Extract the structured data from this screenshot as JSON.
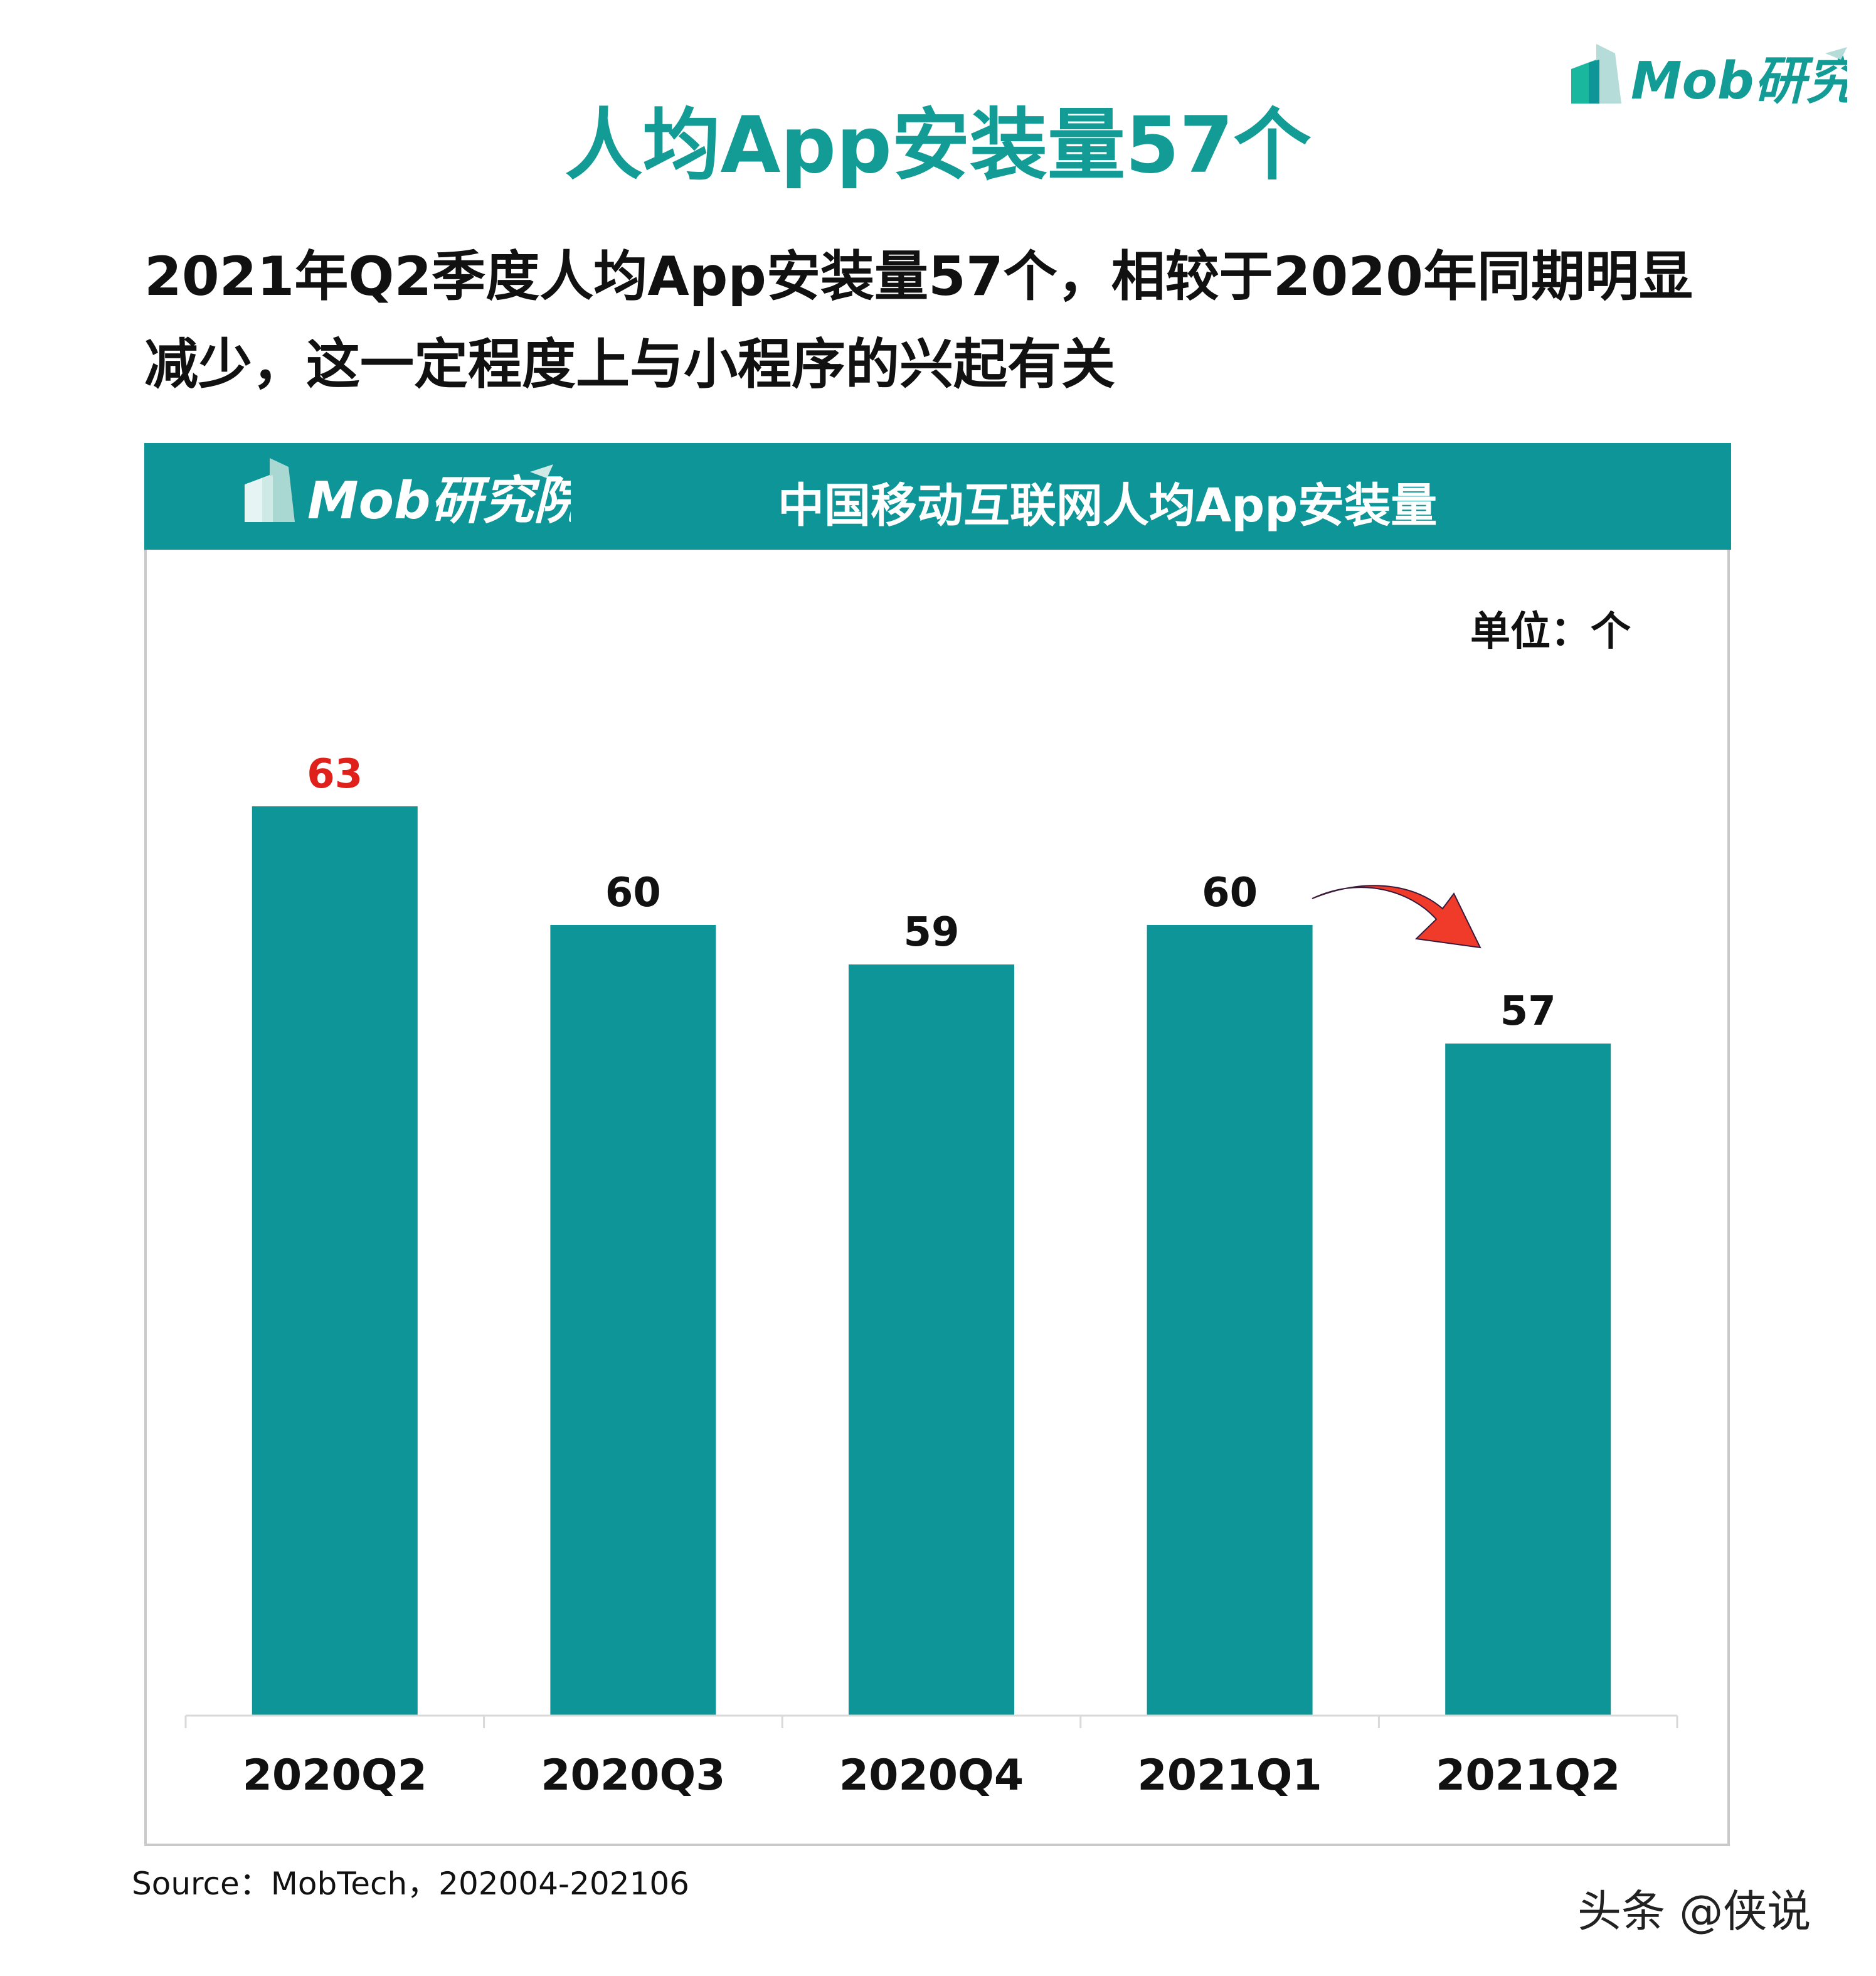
{
  "logo_text": "Mob研究院",
  "title": "人均App安装量57个",
  "subtitle_lines": [
    "2021年Q2季度人均App安装量57个，相较于2020年同期明显",
    "减少，这一定程度上与小程序的兴起有关"
  ],
  "colors": {
    "brand": "#139b96",
    "bar": "#0e9597",
    "highlight_label": "#e0201b",
    "arrow": "#f03a2a"
  },
  "chart_data": {
    "type": "bar",
    "title": "中国移动互联网人均App安装量",
    "unit_label": "单位：个",
    "categories": [
      "2020Q2",
      "2020Q3",
      "2020Q4",
      "2021Q1",
      "2021Q2"
    ],
    "values": [
      63,
      60,
      59,
      60,
      57
    ],
    "data_labels": [
      "63",
      "60",
      "59",
      "60",
      "57"
    ],
    "highlighted_label_index": 0,
    "ylim": [
      40,
      70
    ],
    "grid": false,
    "annotation": "red curved arrow from 2021Q1 to 2021Q2 indicating decrease"
  },
  "source": "Source：MobTech，202004-202106",
  "watermark": "头条 @侠说"
}
